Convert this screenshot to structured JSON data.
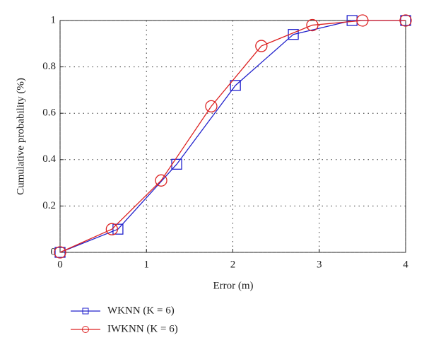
{
  "chart_data": {
    "type": "line",
    "xlabel": "Error (m)",
    "ylabel": "Cumulative probability (%)",
    "xlim": [
      0,
      4
    ],
    "xticks": [
      0,
      1,
      2,
      3,
      4
    ],
    "ylim": [
      0,
      1
    ],
    "yticks": [
      0,
      0.2,
      0.4,
      0.6,
      0.8,
      1
    ],
    "grid": true,
    "legend": "bottom",
    "series": [
      {
        "name": "WKNN (K = 6)",
        "color": "#2222cc",
        "marker": "square",
        "x": [
          0,
          0.67,
          1.35,
          2.03,
          2.7,
          3.38,
          4
        ],
        "values": [
          0,
          0.1,
          0.38,
          0.72,
          0.94,
          1.0,
          1.0
        ]
      },
      {
        "name": "IWKNN (K = 6)",
        "color": "#dd2222",
        "marker": "circle",
        "x": [
          0,
          0.6,
          1.17,
          1.75,
          2.33,
          2.92,
          3.5,
          4
        ],
        "values": [
          0,
          0.1,
          0.31,
          0.63,
          0.89,
          0.98,
          1.0,
          1.0
        ]
      }
    ]
  }
}
